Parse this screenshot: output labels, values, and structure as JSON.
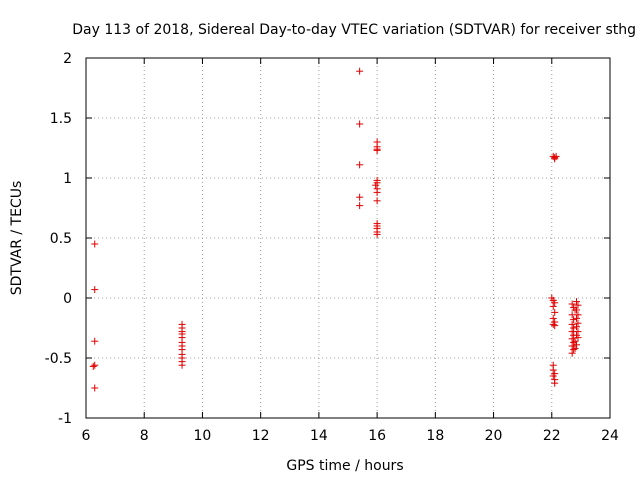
{
  "chart_data": {
    "type": "scatter",
    "title": "Day 113 of 2018, Sidereal Day-to-day VTEC variation (SDTVAR) for receiver sthg",
    "xlabel": "GPS time / hours",
    "ylabel": "SDTVAR / TECUs",
    "xlim": [
      6,
      24
    ],
    "ylim": [
      -1,
      2
    ],
    "xticks": [
      6,
      8,
      10,
      12,
      14,
      16,
      18,
      20,
      22,
      24
    ],
    "yticks": [
      -1,
      -0.5,
      0,
      0.5,
      1,
      1.5,
      2
    ],
    "xtick_labels": [
      "6",
      "8",
      "10",
      "12",
      "14",
      "16",
      "18",
      "20",
      "22",
      "24"
    ],
    "ytick_labels": [
      "-1",
      "-0.5",
      "0",
      "0.5",
      "1",
      "1.5",
      "2"
    ],
    "grid": true,
    "marker": "+",
    "marker_color": "#e00000",
    "series": [
      {
        "name": "SDTVAR",
        "points": [
          [
            6.3,
            0.45
          ],
          [
            6.3,
            0.07
          ],
          [
            6.3,
            -0.36
          ],
          [
            6.3,
            -0.56
          ],
          [
            6.25,
            -0.57
          ],
          [
            6.3,
            -0.75
          ],
          [
            9.3,
            -0.22
          ],
          [
            9.3,
            -0.25
          ],
          [
            9.3,
            -0.28
          ],
          [
            9.3,
            -0.3
          ],
          [
            9.3,
            -0.33
          ],
          [
            9.3,
            -0.37
          ],
          [
            9.3,
            -0.4
          ],
          [
            9.3,
            -0.43
          ],
          [
            9.3,
            -0.47
          ],
          [
            9.3,
            -0.5
          ],
          [
            9.3,
            -0.53
          ],
          [
            9.3,
            -0.56
          ],
          [
            15.4,
            1.89
          ],
          [
            15.4,
            1.45
          ],
          [
            15.4,
            1.11
          ],
          [
            15.4,
            0.84
          ],
          [
            15.4,
            0.77
          ],
          [
            16.0,
            1.3
          ],
          [
            16.0,
            1.26
          ],
          [
            16.0,
            1.24
          ],
          [
            16.0,
            1.23
          ],
          [
            16.0,
            0.98
          ],
          [
            16.0,
            0.96
          ],
          [
            15.95,
            0.94
          ],
          [
            16.0,
            0.91
          ],
          [
            16.0,
            0.88
          ],
          [
            16.0,
            0.81
          ],
          [
            16.0,
            0.62
          ],
          [
            16.0,
            0.6
          ],
          [
            16.0,
            0.58
          ],
          [
            16.0,
            0.55
          ],
          [
            16.0,
            0.53
          ],
          [
            22.05,
            1.18
          ],
          [
            22.1,
            1.17
          ],
          [
            22.15,
            1.18
          ],
          [
            22.1,
            1.16
          ],
          [
            22.0,
            0.0
          ],
          [
            22.05,
            -0.02
          ],
          [
            22.1,
            -0.04
          ],
          [
            22.05,
            -0.07
          ],
          [
            22.1,
            -0.12
          ],
          [
            22.05,
            -0.17
          ],
          [
            22.1,
            -0.2
          ],
          [
            22.1,
            -0.23
          ],
          [
            22.05,
            -0.22
          ],
          [
            22.05,
            -0.56
          ],
          [
            22.05,
            -0.6
          ],
          [
            22.1,
            -0.63
          ],
          [
            22.05,
            -0.65
          ],
          [
            22.1,
            -0.68
          ],
          [
            22.1,
            -0.71
          ],
          [
            22.7,
            -0.05
          ],
          [
            22.75,
            -0.08
          ],
          [
            22.8,
            -0.1
          ],
          [
            22.7,
            -0.14
          ],
          [
            22.75,
            -0.18
          ],
          [
            22.7,
            -0.22
          ],
          [
            22.75,
            -0.25
          ],
          [
            22.7,
            -0.28
          ],
          [
            22.75,
            -0.31
          ],
          [
            22.7,
            -0.34
          ],
          [
            22.75,
            -0.37
          ],
          [
            22.7,
            -0.4
          ],
          [
            22.75,
            -0.43
          ],
          [
            22.7,
            -0.46
          ],
          [
            22.85,
            -0.03
          ],
          [
            22.9,
            -0.06
          ],
          [
            22.85,
            -0.1
          ],
          [
            22.9,
            -0.14
          ],
          [
            22.85,
            -0.17
          ],
          [
            22.9,
            -0.21
          ],
          [
            22.85,
            -0.24
          ],
          [
            22.9,
            -0.28
          ],
          [
            22.85,
            -0.31
          ],
          [
            22.9,
            -0.33
          ],
          [
            22.8,
            -0.36
          ],
          [
            22.85,
            -0.39
          ],
          [
            22.8,
            -0.42
          ]
        ]
      }
    ]
  }
}
